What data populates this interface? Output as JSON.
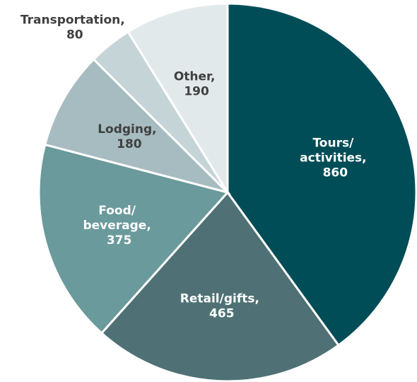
{
  "chart_data": {
    "type": "pie",
    "categories": [
      "Tours/ activities, 860",
      "Retail/gifts, 465",
      "Food/ beverage, 375",
      "Lodging, 180",
      "Transportation, 80",
      "Other, 190"
    ],
    "values": [
      860,
      465,
      375,
      180,
      80,
      190
    ],
    "colors": [
      "#004d57",
      "#4f7175",
      "#6a9a9b",
      "#a6bcc0",
      "#c5d4d6",
      "#e2e9eb"
    ]
  }
}
